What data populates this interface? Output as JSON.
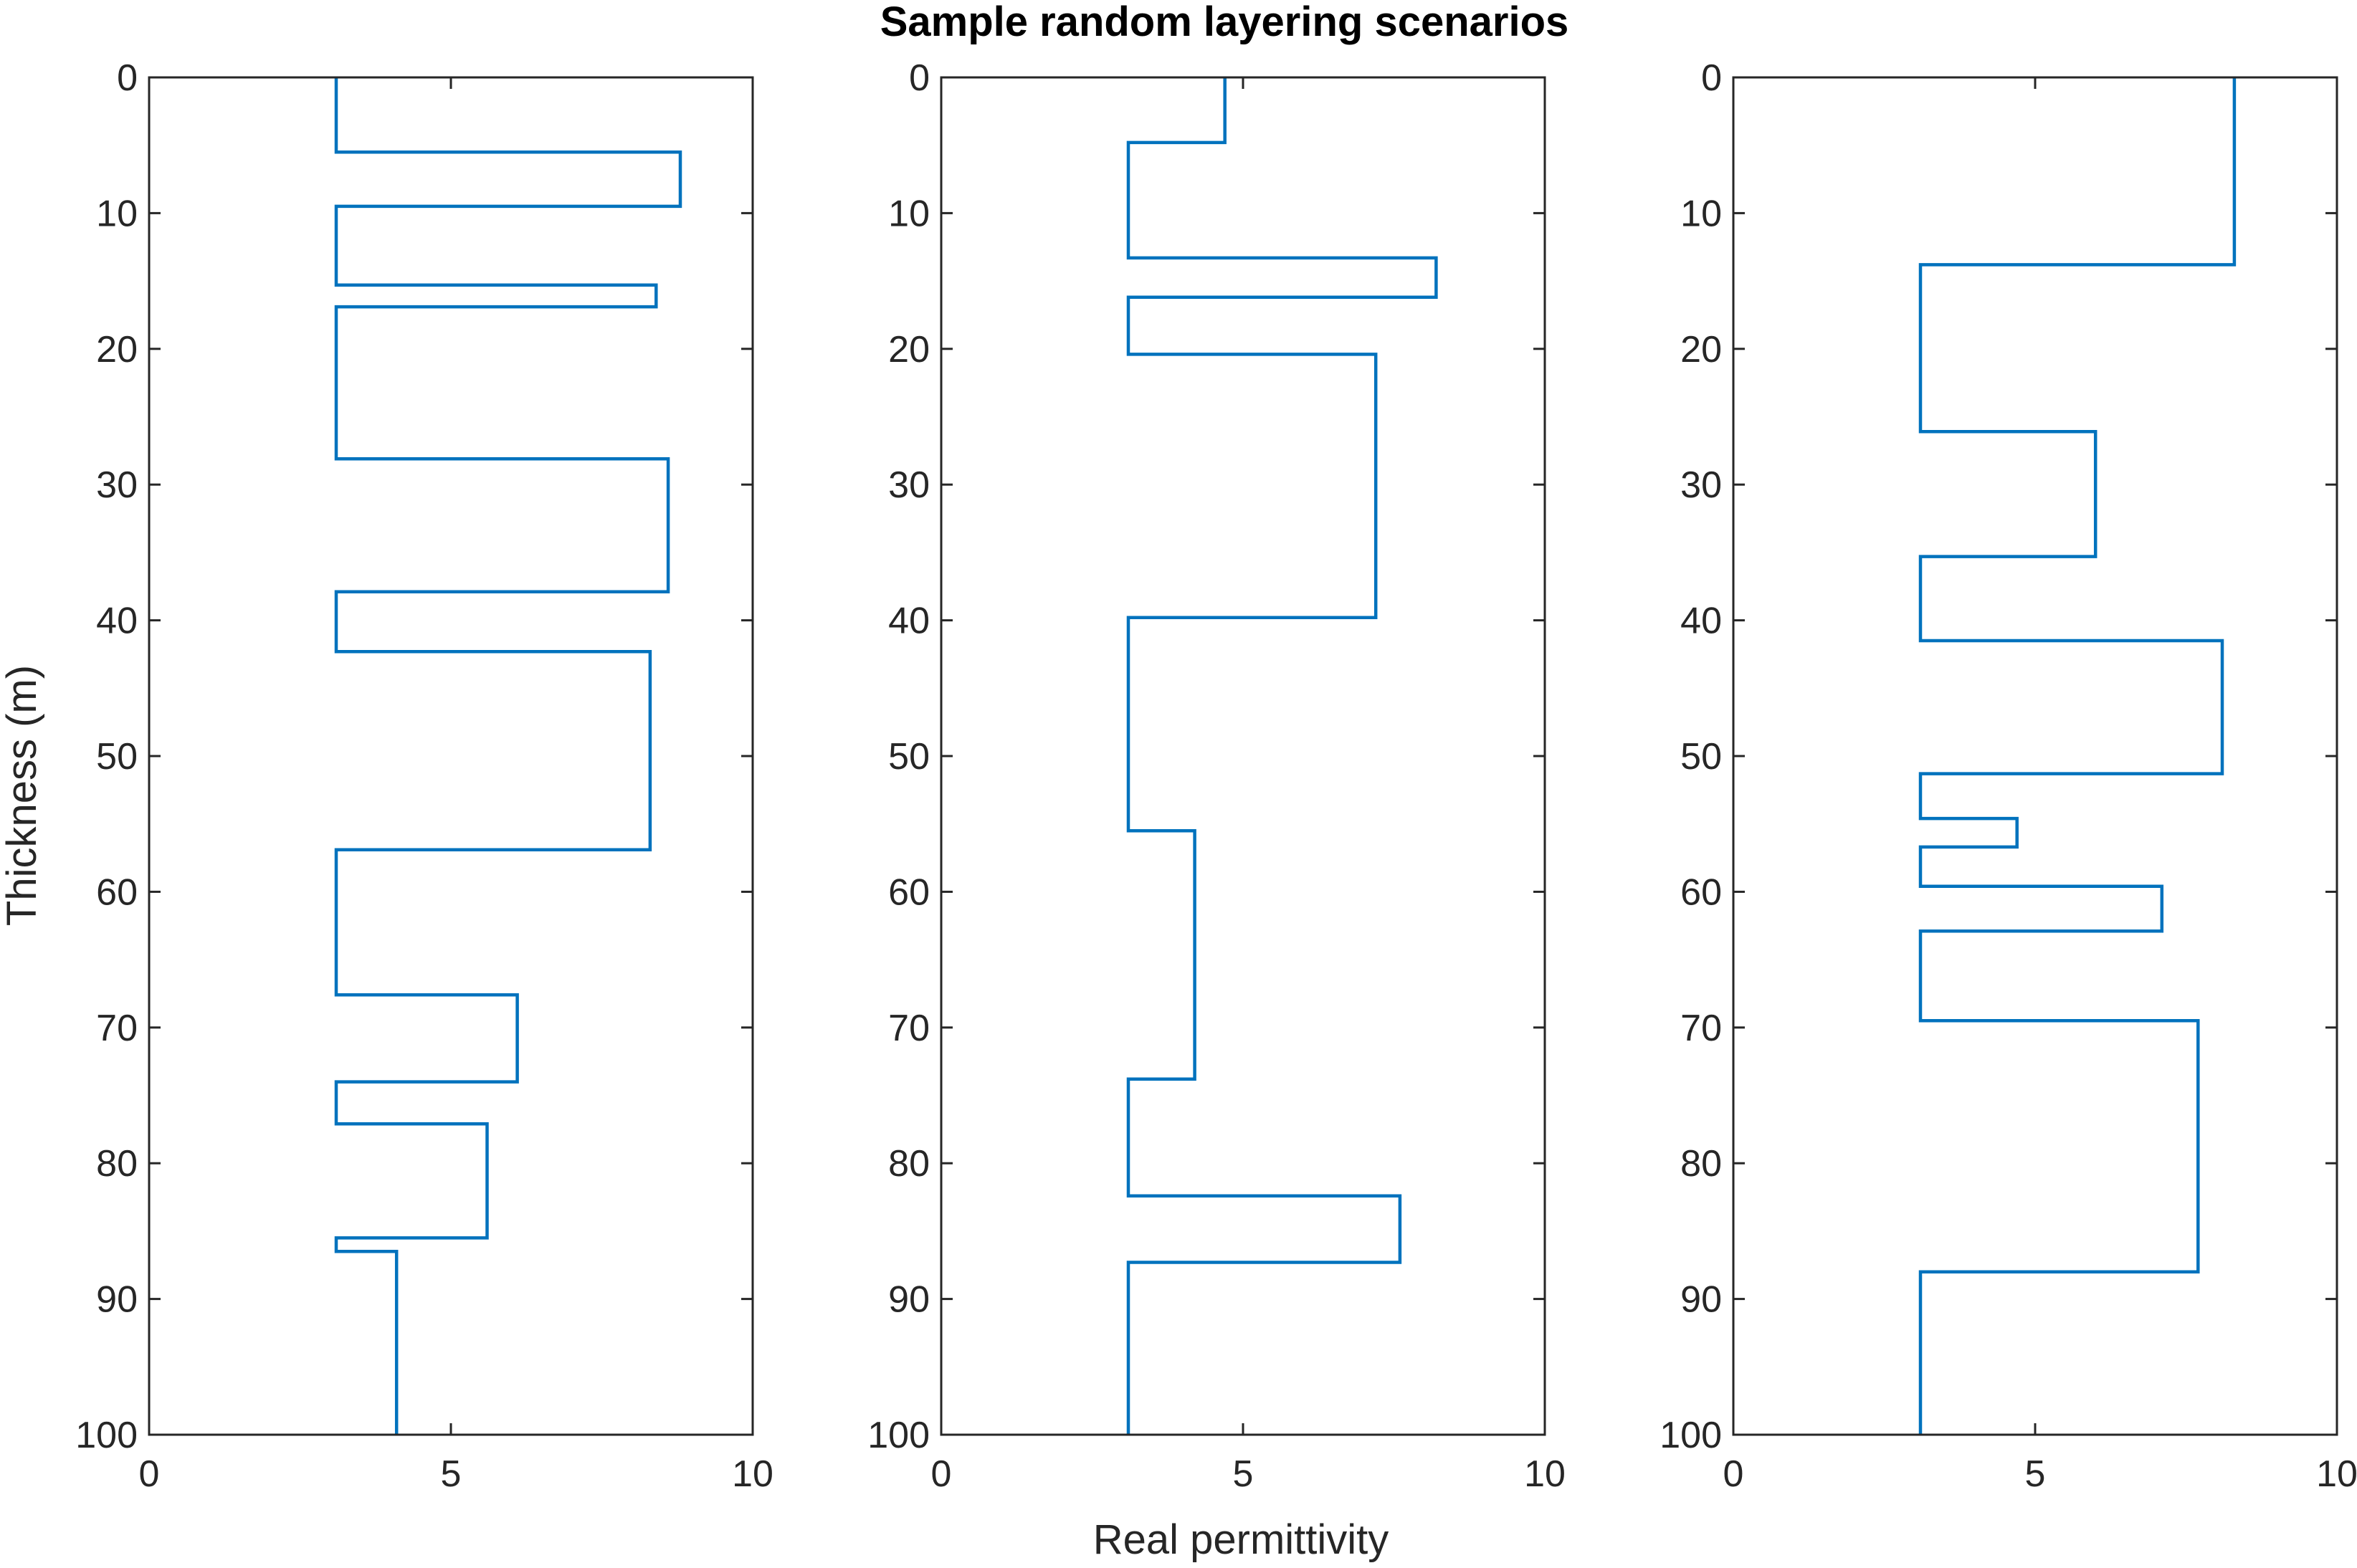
{
  "colors": {
    "series": "#0072bd",
    "axes": "#262626",
    "background": "#ffffff"
  },
  "figure": {
    "title": "Sample random layering scenarios",
    "xlabel": "Real permittivity",
    "ylabel": "Thickness (m)"
  },
  "chart_data": [
    {
      "type": "line",
      "style": "stairs",
      "x_name": "Real permittivity",
      "y_name": "Thickness (m)",
      "xlim": [
        0,
        10
      ],
      "ylim": [
        0,
        100
      ],
      "y_reversed": true,
      "grid": false,
      "xticks": [
        0,
        5,
        10
      ],
      "yticks": [
        0,
        10,
        20,
        30,
        40,
        50,
        60,
        70,
        80,
        90,
        100
      ],
      "layers": [
        {
          "top": 0,
          "bottom": 5.5,
          "value": 3.1
        },
        {
          "top": 5.5,
          "bottom": 9.5,
          "value": 8.8
        },
        {
          "top": 9.5,
          "bottom": 15.3,
          "value": 3.1
        },
        {
          "top": 15.3,
          "bottom": 16.9,
          "value": 8.4
        },
        {
          "top": 16.9,
          "bottom": 28.1,
          "value": 3.1
        },
        {
          "top": 28.1,
          "bottom": 37.9,
          "value": 8.6
        },
        {
          "top": 37.9,
          "bottom": 42.3,
          "value": 3.1
        },
        {
          "top": 42.3,
          "bottom": 56.9,
          "value": 8.3
        },
        {
          "top": 56.9,
          "bottom": 67.6,
          "value": 3.1
        },
        {
          "top": 67.6,
          "bottom": 74.0,
          "value": 6.1
        },
        {
          "top": 74.0,
          "bottom": 77.1,
          "value": 3.1
        },
        {
          "top": 77.1,
          "bottom": 85.5,
          "value": 5.6
        },
        {
          "top": 85.5,
          "bottom": 86.5,
          "value": 3.1
        },
        {
          "top": 86.5,
          "bottom": 100,
          "value": 4.1
        }
      ]
    },
    {
      "type": "line",
      "style": "stairs",
      "x_name": "Real permittivity",
      "y_name": "Thickness (m)",
      "xlim": [
        0,
        10
      ],
      "ylim": [
        0,
        100
      ],
      "y_reversed": true,
      "grid": false,
      "xticks": [
        0,
        5,
        10
      ],
      "yticks": [
        0,
        10,
        20,
        30,
        40,
        50,
        60,
        70,
        80,
        90,
        100
      ],
      "layers": [
        {
          "top": 0,
          "bottom": 4.8,
          "value": 4.7
        },
        {
          "top": 4.8,
          "bottom": 13.3,
          "value": 3.1
        },
        {
          "top": 13.3,
          "bottom": 16.2,
          "value": 8.2
        },
        {
          "top": 16.2,
          "bottom": 20.4,
          "value": 3.1
        },
        {
          "top": 20.4,
          "bottom": 39.8,
          "value": 7.2
        },
        {
          "top": 39.8,
          "bottom": 55.5,
          "value": 3.1
        },
        {
          "top": 55.5,
          "bottom": 73.8,
          "value": 4.2
        },
        {
          "top": 73.8,
          "bottom": 82.4,
          "value": 3.1
        },
        {
          "top": 82.4,
          "bottom": 87.3,
          "value": 7.6
        },
        {
          "top": 87.3,
          "bottom": 100,
          "value": 3.1
        }
      ]
    },
    {
      "type": "line",
      "style": "stairs",
      "x_name": "Real permittivity",
      "y_name": "Thickness (m)",
      "xlim": [
        0,
        10
      ],
      "ylim": [
        0,
        100
      ],
      "y_reversed": true,
      "grid": false,
      "xticks": [
        0,
        5,
        10
      ],
      "yticks": [
        0,
        10,
        20,
        30,
        40,
        50,
        60,
        70,
        80,
        90,
        100
      ],
      "layers": [
        {
          "top": 0,
          "bottom": 13.8,
          "value": 8.3
        },
        {
          "top": 13.8,
          "bottom": 26.1,
          "value": 3.1
        },
        {
          "top": 26.1,
          "bottom": 35.3,
          "value": 6.0
        },
        {
          "top": 35.3,
          "bottom": 41.5,
          "value": 3.1
        },
        {
          "top": 41.5,
          "bottom": 51.3,
          "value": 8.1
        },
        {
          "top": 51.3,
          "bottom": 54.6,
          "value": 3.1
        },
        {
          "top": 54.6,
          "bottom": 56.7,
          "value": 4.7
        },
        {
          "top": 56.7,
          "bottom": 59.6,
          "value": 3.1
        },
        {
          "top": 59.6,
          "bottom": 62.9,
          "value": 7.1
        },
        {
          "top": 62.9,
          "bottom": 69.5,
          "value": 3.1
        },
        {
          "top": 69.5,
          "bottom": 88.0,
          "value": 7.7
        },
        {
          "top": 88.0,
          "bottom": 100,
          "value": 3.1
        }
      ]
    }
  ]
}
